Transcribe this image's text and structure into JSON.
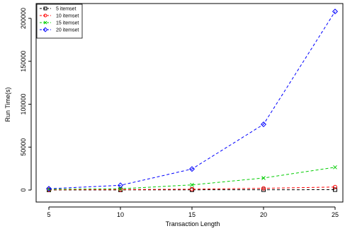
{
  "chart_data": {
    "type": "line",
    "title": "",
    "xlabel": "Transaction Length",
    "ylabel": "Run Time(s)",
    "x": [
      5,
      10,
      15,
      20,
      25
    ],
    "xlim": [
      5,
      25
    ],
    "ylim": [
      0,
      200000
    ],
    "xticks": [
      "5",
      "10",
      "15",
      "20",
      "25"
    ],
    "yticks": [
      "0",
      "50000",
      "100000",
      "150000",
      "200000"
    ],
    "legend_position": "top-left",
    "grid": false,
    "series": [
      {
        "name": "5 itemset",
        "values": [
          100,
          150,
          250,
          300,
          400
        ],
        "color": "#000000",
        "marker": "square"
      },
      {
        "name": "10 itemset",
        "values": [
          300,
          500,
          1000,
          2000,
          3500
        ],
        "color": "#ff0000",
        "marker": "circle"
      },
      {
        "name": "15 itemset",
        "values": [
          800,
          1500,
          6000,
          14000,
          26500
        ],
        "color": "#00cc00",
        "marker": "x"
      },
      {
        "name": "20 itemset",
        "values": [
          1500,
          5500,
          24500,
          76500,
          208000
        ],
        "color": "#0000ff",
        "marker": "diamond"
      }
    ]
  }
}
